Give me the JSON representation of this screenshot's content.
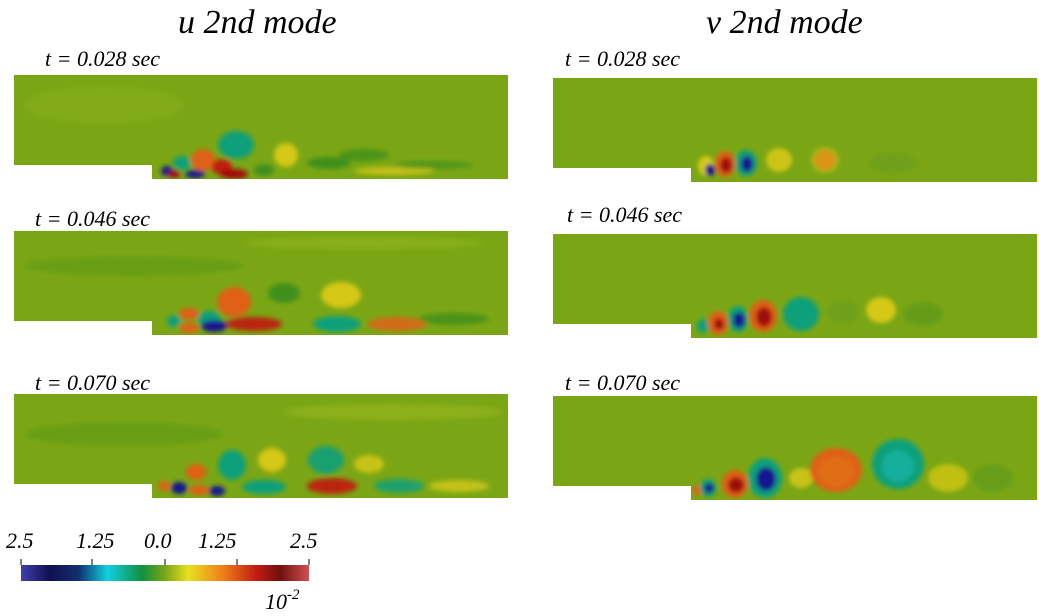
{
  "columns": [
    {
      "title": "u 2nd mode",
      "panels": [
        {
          "time": "t = 0.028 sec"
        },
        {
          "time": "t = 0.046 sec"
        },
        {
          "time": "t = 0.070 sec"
        }
      ]
    },
    {
      "title": "v 2nd mode",
      "panels": [
        {
          "time": "t = 0.028 sec"
        },
        {
          "time": "t = 0.046 sec"
        },
        {
          "time": "t = 0.070 sec"
        }
      ]
    }
  ],
  "colorbar": {
    "ticks": [
      "2.5",
      "1.25",
      "0.0",
      "1.25",
      "2.5"
    ],
    "exponent_base": "10",
    "exponent_power": "-2",
    "colors": [
      "#3a3aa8",
      "#101050",
      "#10c8d0",
      "#109040",
      "#7aa615",
      "#e8e020",
      "#f08018",
      "#c01a10",
      "#7a1010",
      "#c64040"
    ]
  },
  "field_colors": {
    "background": "#7aa615",
    "strong_negative": "#151590",
    "negative": "#10a07a",
    "mild_negative": "#3f8f1a",
    "mild_positive": "#d6c815",
    "positive": "#e06015",
    "strong_positive": "#a01010"
  }
}
